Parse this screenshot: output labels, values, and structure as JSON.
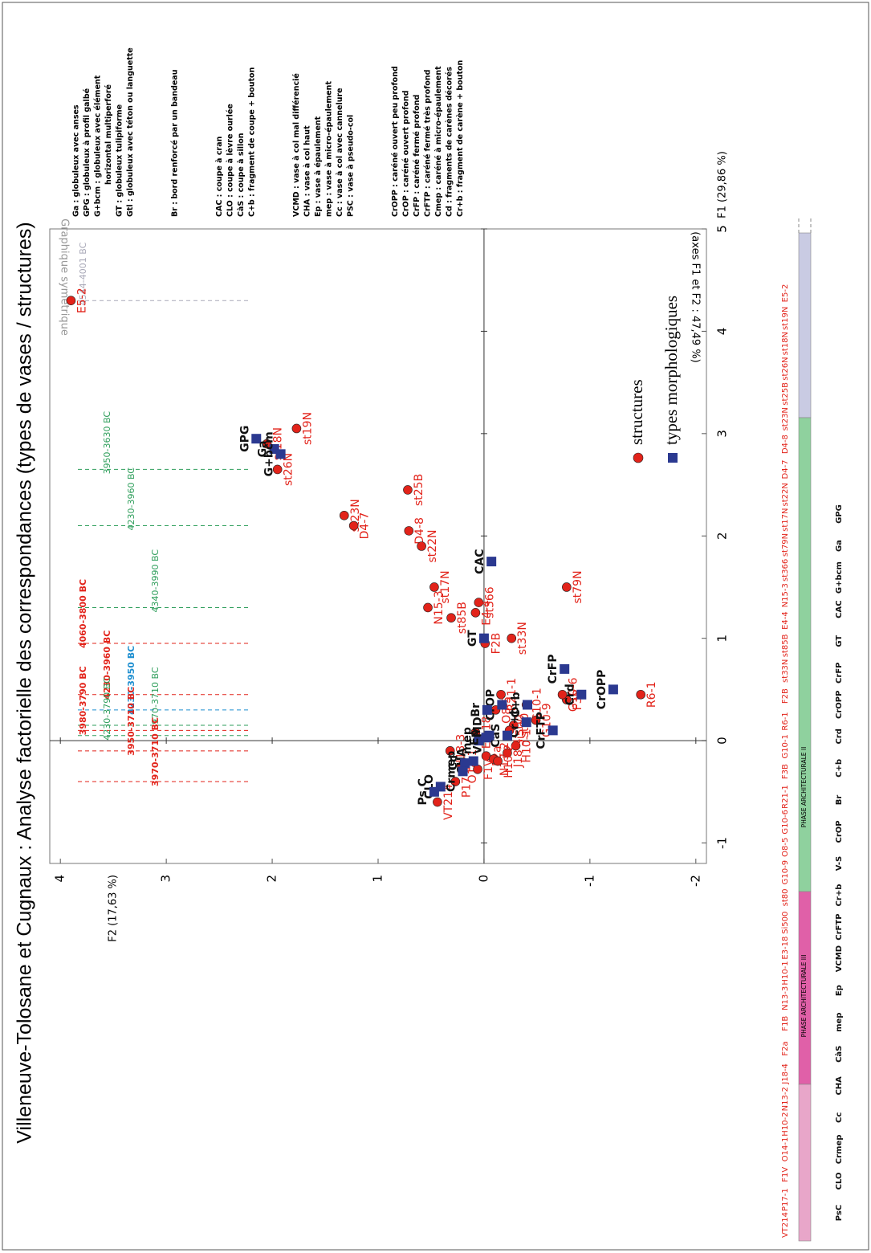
{
  "chart_data": {
    "type": "scatter",
    "title": "Villeneuve-Tolosane et Cugnaux : Analyse factorielle des correspondances (types de vases / structures)",
    "x_label": "F1 (29,86 %)",
    "y_label": "F2 (17,63 %)",
    "xlim": [
      -1.2,
      5.0
    ],
    "xticks": [
      -1,
      0,
      1,
      2,
      3,
      4,
      5
    ],
    "ylim": [
      -2.1,
      4.1
    ],
    "yticks": [
      -2,
      -1,
      0,
      1,
      2,
      3,
      4
    ],
    "zero_axes": true,
    "annotations": [
      "Graphique symétrique",
      "(axes F1 et F2 : 47,49 %)"
    ],
    "series": [
      {
        "name": "structures",
        "color": "#e2231a",
        "marker": "circle",
        "labels": [
          "E5-2",
          "st19N",
          "st18N",
          "st26N",
          "st25B",
          "st23N",
          "D4-7",
          "D4-8",
          "st22N",
          "st17N",
          "st79N",
          "st366",
          "N15-3",
          "E4-4",
          "st85B",
          "st33N",
          "F2B",
          "R6-1",
          "G10-1",
          "F3B",
          "R21-1",
          "G10-6",
          "O8-5",
          "G10-9",
          "st80",
          "Si500",
          "E3-18",
          "H10-1",
          "N13-3",
          "J18-4",
          "F2a",
          "N13-2",
          "H10-2",
          "O14-1",
          "F1V",
          "P17-1",
          "VT214"
        ],
        "x": [
          4.3,
          3.05,
          2.9,
          2.65,
          2.45,
          2.2,
          2.1,
          2.05,
          1.9,
          1.5,
          1.5,
          1.35,
          1.3,
          1.25,
          1.2,
          1.0,
          0.95,
          0.45,
          0.35,
          0.4,
          0.45,
          0.45,
          0.3,
          0.2,
          0.15,
          0.1,
          0.08,
          -0.05,
          -0.1,
          -0.12,
          -0.15,
          -0.18,
          -0.2,
          -0.25,
          -0.28,
          -0.4,
          -0.6
        ],
        "y": [
          3.9,
          1.77,
          2.05,
          1.95,
          0.72,
          1.32,
          1.23,
          0.71,
          0.59,
          0.47,
          -0.78,
          0.05,
          0.53,
          0.08,
          0.31,
          -0.26,
          -0.01,
          -1.48,
          -0.4,
          -0.78,
          -0.16,
          -0.74,
          -0.11,
          -0.49,
          -0.28,
          -0.24,
          0.08,
          -0.3,
          0.32,
          -0.22,
          -0.02,
          -0.09,
          -0.13,
          0.21,
          0.06,
          0.27,
          0.44
        ]
      },
      {
        "name": "types morphologiques",
        "color": "#2b3990",
        "marker": "square",
        "labels": [
          "GPG",
          "Ga",
          "G+bcm",
          "CAC",
          "GT",
          "CrFP",
          "CrOPP",
          "Crd",
          "C+b",
          "CrOP",
          "Br",
          "Cr+b",
          "CrFTP",
          "CàS",
          "VCMD",
          "mep",
          "Ep",
          "CHA",
          "Cc",
          "Crmep",
          "CLO",
          "Ps C"
        ],
        "x": [
          2.95,
          2.85,
          2.8,
          1.75,
          1.0,
          0.7,
          0.5,
          0.45,
          0.35,
          0.35,
          0.3,
          0.18,
          0.1,
          0.05,
          0.05,
          0.0,
          0.03,
          -0.2,
          -0.22,
          -0.3,
          -0.45,
          -0.5
        ],
        "y": [
          2.15,
          1.98,
          1.92,
          -0.07,
          0.0,
          -0.76,
          -1.22,
          -0.92,
          -0.41,
          -0.17,
          -0.03,
          -0.4,
          -0.65,
          -0.22,
          -0.05,
          0.05,
          -0.02,
          0.1,
          0.18,
          0.2,
          0.41,
          0.47
        ]
      }
    ],
    "date_lines": [
      {
        "label": "4544-4001 BC",
        "x": 4.3,
        "color": "#a9a9b8",
        "bold": false
      },
      {
        "label": "3950-3630 BC",
        "x": 2.65,
        "color": "#2e9e5b",
        "bold": false
      },
      {
        "label": "4230-3960 BC",
        "x": 2.1,
        "color": "#2e9e5b",
        "bold": false
      },
      {
        "label": "4340-3990 BC",
        "x": 1.3,
        "color": "#2e9e5b",
        "bold": false
      },
      {
        "label": "4060-3800 BC",
        "x": 0.95,
        "color": "#e2231a",
        "bold": true
      },
      {
        "label": "4230-3960 BC",
        "x": 0.45,
        "color": "#e2231a",
        "bold": true
      },
      {
        "label": "4230-3950 BC",
        "x": 0.3,
        "color": "#1f8fd0",
        "bold": true
      },
      {
        "label": "3970-3710 BC",
        "x": 0.15,
        "color": "#2e9e5b",
        "bold": false
      },
      {
        "label": "3980-3790 BC",
        "x": 0.1,
        "color": "#e2231a",
        "bold": true
      },
      {
        "label": "4230-3790 BC",
        "x": 0.05,
        "color": "#2e9e5b",
        "bold": false
      },
      {
        "label": "3950-3710 BC",
        "x": -0.1,
        "color": "#e2231a",
        "bold": true
      },
      {
        "label": "3970-3710 BC",
        "x": -0.4,
        "color": "#e2231a",
        "bold": true
      }
    ],
    "phase_bar": {
      "phases": [
        "PHASE ARCHITECTURALE III",
        "PHASE ARCHITECTURALE II"
      ],
      "structures": [
        "VT214",
        "P17-1",
        "F1V",
        "O14-1",
        "H10-2",
        "N13-2",
        "J18-4",
        "F2a",
        "F1B",
        "N13-3",
        "H10-1",
        "E3-18",
        "Si500",
        "st80",
        "G10-9",
        "O8-5",
        "G10-6",
        "R21-1",
        "F3B",
        "G10-1",
        "R6-1",
        "F2B",
        "st33N",
        "st85B",
        "E4-4",
        "N15-3",
        "st366",
        "st79N",
        "st17N",
        "st22N",
        "D4-7",
        "D4-8",
        "st23N",
        "st25B",
        "st26N",
        "st18N",
        "st19N",
        "E5-2"
      ],
      "types": [
        "PsC",
        "CLO",
        "Crmep",
        "Cc",
        "CHA",
        "CàS",
        "mep",
        "Ep",
        "VCMD",
        "CrFTP",
        "Cr+b",
        "V-S",
        "CrOP",
        "Br",
        "C+b",
        "Crd",
        "CrOPP",
        "CrFP",
        "GT",
        "CAC",
        "G+bcm",
        "Ga",
        "GPG"
      ]
    },
    "definitions": [
      [
        "Ga : globuleux avec anses",
        "GPG : globuleux à profil galbé",
        "G+bcm : globuleux avec élément",
        "horizontal multiperforé",
        "GT : globuleux tulipiforme",
        "Gtl : globuleux avec téton ou languette"
      ],
      [
        "Br : bord renforcé par un bandeau"
      ],
      [
        "CAC : coupe à cran",
        "CLO : coupe à lèvre ourlée",
        "CàS : coupe à sillon",
        "C+b : fragment de coupe + bouton"
      ],
      [
        "VCMD : vase à col mal différencié",
        "CHA : vase à col haut",
        "Ep : vase à épaulement",
        "mep : vase à micro-épaulement",
        "Cc : vase à col avec cannelure",
        "PSC : vase à pseudo-col"
      ],
      [
        "CrOPP : caréné ouvert peu profond",
        "CrOP : caréné ouvert profond",
        "CrFP : caréné fermé profond",
        "CrFTP : caréné fermé très profond",
        "Cmep : caréné à micro-épaulement",
        "Cd : fragments de carènes décorés",
        "Cr+b : fragment de carène + bouton"
      ]
    ]
  }
}
